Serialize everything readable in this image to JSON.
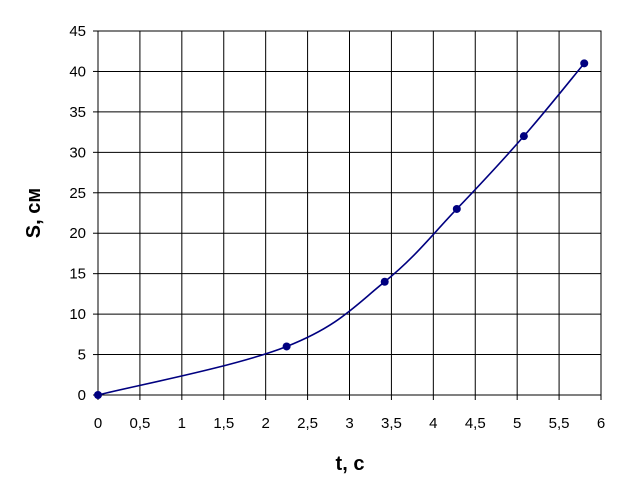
{
  "chart_data": {
    "type": "line",
    "title": "",
    "xlabel": "t, с",
    "ylabel": "S, см",
    "xlim": [
      0,
      6
    ],
    "ylim": [
      0,
      45
    ],
    "x_ticks": [
      "0",
      "0,5",
      "1",
      "1,5",
      "2",
      "2,5",
      "3",
      "3,5",
      "4",
      "4,5",
      "5",
      "5,5",
      "6"
    ],
    "y_ticks": [
      "0",
      "5",
      "10",
      "15",
      "20",
      "25",
      "30",
      "35",
      "40",
      "45"
    ],
    "grid": true,
    "legend": "none",
    "series": [
      {
        "color": "#000080",
        "x": [
          0,
          2.25,
          3.42,
          4.28,
          5.08,
          5.8
        ],
        "y": [
          0,
          6,
          14,
          23,
          32,
          41
        ]
      }
    ]
  }
}
